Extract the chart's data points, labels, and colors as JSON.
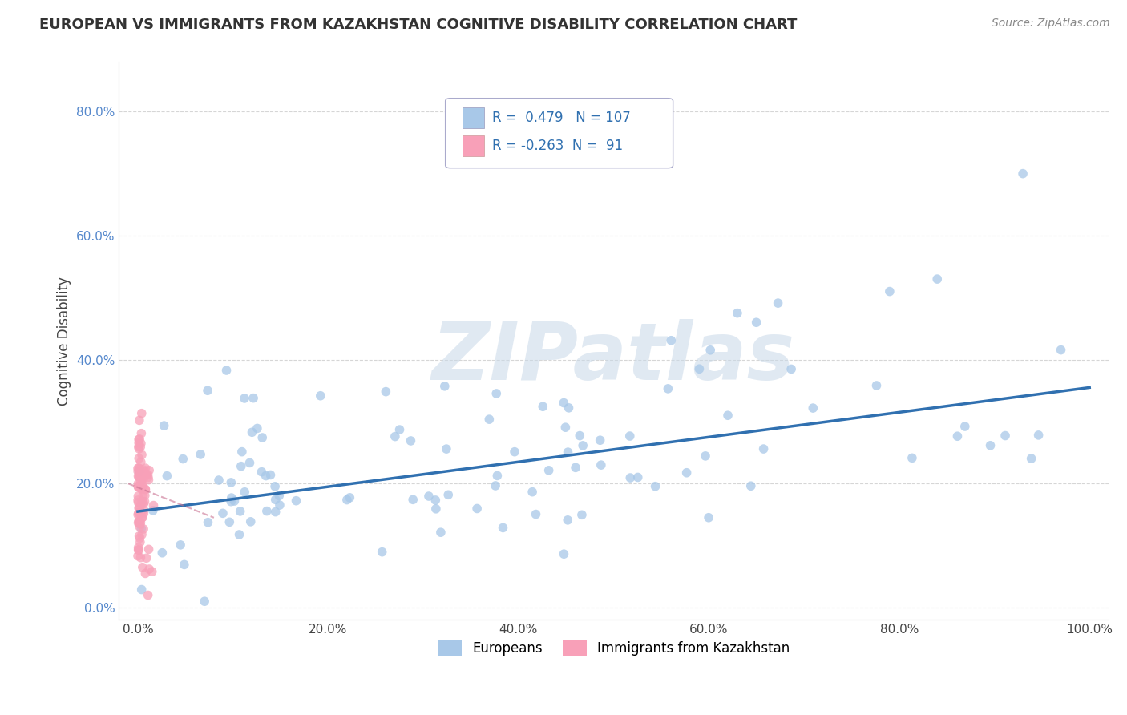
{
  "title": "EUROPEAN VS IMMIGRANTS FROM KAZAKHSTAN COGNITIVE DISABILITY CORRELATION CHART",
  "source": "Source: ZipAtlas.com",
  "ylabel": "Cognitive Disability",
  "xlabel": "",
  "watermark": "ZIPatlas",
  "legend_blue_label": "Europeans",
  "legend_pink_label": "Immigrants from Kazakhstan",
  "R_blue": 0.479,
  "N_blue": 107,
  "R_pink": -0.263,
  "N_pink": 91,
  "blue_color": "#a8c8e8",
  "blue_line_color": "#3070b0",
  "pink_color": "#f8a0b8",
  "pink_line_color": "#c87090",
  "background_color": "#ffffff",
  "grid_color": "#cccccc",
  "xlim": [
    -0.02,
    1.02
  ],
  "ylim": [
    -0.02,
    0.88
  ],
  "yticks": [
    0.0,
    0.2,
    0.4,
    0.6,
    0.8
  ],
  "xticks": [
    0.0,
    0.2,
    0.4,
    0.6,
    0.8,
    1.0
  ],
  "title_fontsize": 13,
  "axis_label_fontsize": 12,
  "tick_fontsize": 11,
  "blue_line_y0": 0.155,
  "blue_line_y1": 0.355,
  "pink_line_x0": -0.01,
  "pink_line_x1": 0.08,
  "pink_line_y0": 0.2,
  "pink_line_y1": 0.145
}
